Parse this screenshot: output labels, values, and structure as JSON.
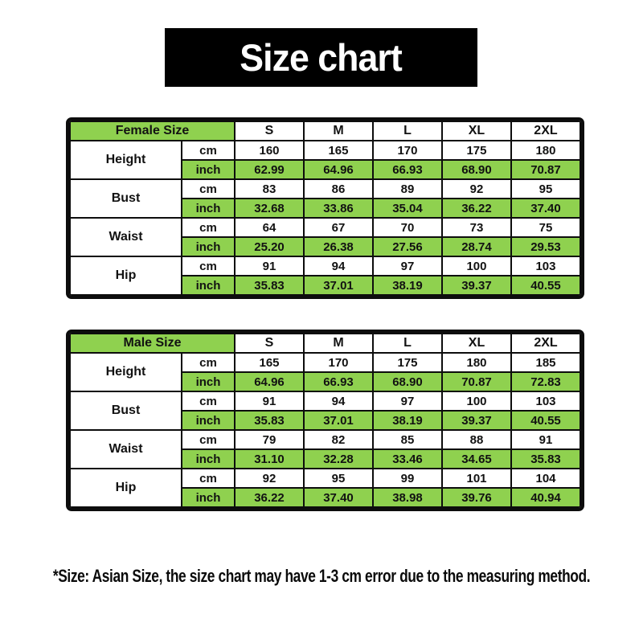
{
  "page": {
    "title": "Size chart",
    "footnote": "*Size: Asian Size, the size chart may have 1-3 cm error due to the measuring method."
  },
  "colors": {
    "accent_green": "#8FD14F",
    "banner_bg": "#000000",
    "banner_text": "#FFFFFF",
    "border": "#0D0D0D",
    "cell_bg": "#FFFFFF",
    "text": "#121212"
  },
  "units": {
    "cm": "cm",
    "inch": "inch"
  },
  "chart_data": [
    {
      "type": "table",
      "title": "Female Size",
      "columns": [
        "S",
        "M",
        "L",
        "XL",
        "2XL"
      ],
      "rows": [
        {
          "label": "Height",
          "cm": [
            "160",
            "165",
            "170",
            "175",
            "180"
          ],
          "inch": [
            "62.99",
            "64.96",
            "66.93",
            "68.90",
            "70.87"
          ]
        },
        {
          "label": "Bust",
          "cm": [
            "83",
            "86",
            "89",
            "92",
            "95"
          ],
          "inch": [
            "32.68",
            "33.86",
            "35.04",
            "36.22",
            "37.40"
          ]
        },
        {
          "label": "Waist",
          "cm": [
            "64",
            "67",
            "70",
            "73",
            "75"
          ],
          "inch": [
            "25.20",
            "26.38",
            "27.56",
            "28.74",
            "29.53"
          ]
        },
        {
          "label": "Hip",
          "cm": [
            "91",
            "94",
            "97",
            "100",
            "103"
          ],
          "inch": [
            "35.83",
            "37.01",
            "38.19",
            "39.37",
            "40.55"
          ]
        }
      ]
    },
    {
      "type": "table",
      "title": "Male Size",
      "columns": [
        "S",
        "M",
        "L",
        "XL",
        "2XL"
      ],
      "rows": [
        {
          "label": "Height",
          "cm": [
            "165",
            "170",
            "175",
            "180",
            "185"
          ],
          "inch": [
            "64.96",
            "66.93",
            "68.90",
            "70.87",
            "72.83"
          ]
        },
        {
          "label": "Bust",
          "cm": [
            "91",
            "94",
            "97",
            "100",
            "103"
          ],
          "inch": [
            "35.83",
            "37.01",
            "38.19",
            "39.37",
            "40.55"
          ]
        },
        {
          "label": "Waist",
          "cm": [
            "79",
            "82",
            "85",
            "88",
            "91"
          ],
          "inch": [
            "31.10",
            "32.28",
            "33.46",
            "34.65",
            "35.83"
          ]
        },
        {
          "label": "Hip",
          "cm": [
            "92",
            "95",
            "99",
            "101",
            "104"
          ],
          "inch": [
            "36.22",
            "37.40",
            "38.98",
            "39.76",
            "40.94"
          ]
        }
      ]
    }
  ]
}
